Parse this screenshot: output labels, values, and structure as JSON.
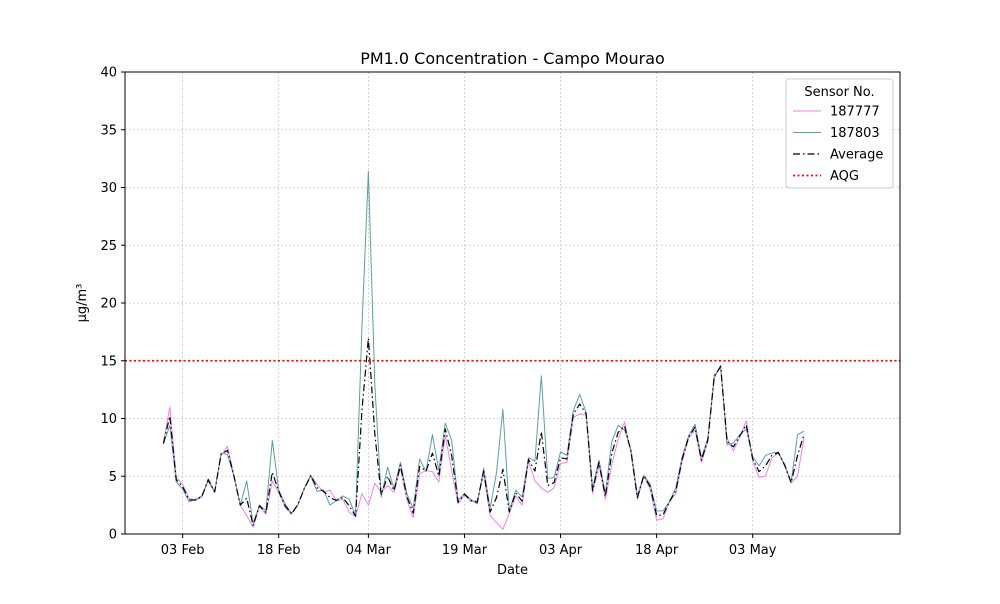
{
  "chart_data": {
    "type": "line",
    "title": "PM1.0 Concentration - Campo Mourao",
    "xlabel": "Date",
    "ylabel": "µg/m³",
    "ylim": [
      0,
      40
    ],
    "yticks": [
      "0",
      "5",
      "10",
      "15",
      "20",
      "25",
      "30",
      "35",
      "40"
    ],
    "xlim": [
      "2023-01-25",
      "2023-05-26"
    ],
    "xticks": [
      {
        "date": "2023-02-03",
        "label": "03 Feb"
      },
      {
        "date": "2023-02-18",
        "label": "18 Feb"
      },
      {
        "date": "2023-03-04",
        "label": "04 Mar"
      },
      {
        "date": "2023-03-19",
        "label": "19 Mar"
      },
      {
        "date": "2023-04-03",
        "label": "03 Apr"
      },
      {
        "date": "2023-04-18",
        "label": "18 Apr"
      },
      {
        "date": "2023-05-03",
        "label": "03 May"
      }
    ],
    "grid": true,
    "legend": {
      "title": "Sensor No.",
      "placement": "top-right"
    },
    "x_dates": [
      "2023-01-31",
      "2023-02-01",
      "2023-02-02",
      "2023-02-03",
      "2023-02-04",
      "2023-02-05",
      "2023-02-06",
      "2023-02-07",
      "2023-02-08",
      "2023-02-09",
      "2023-02-10",
      "2023-02-11",
      "2023-02-12",
      "2023-02-13",
      "2023-02-14",
      "2023-02-15",
      "2023-02-16",
      "2023-02-17",
      "2023-02-18",
      "2023-02-19",
      "2023-02-20",
      "2023-02-21",
      "2023-02-22",
      "2023-02-23",
      "2023-02-24",
      "2023-02-25",
      "2023-02-26",
      "2023-02-27",
      "2023-02-28",
      "2023-03-01",
      "2023-03-02",
      "2023-03-03",
      "2023-03-04",
      "2023-03-05",
      "2023-03-06",
      "2023-03-07",
      "2023-03-08",
      "2023-03-09",
      "2023-03-10",
      "2023-03-11",
      "2023-03-12",
      "2023-03-13",
      "2023-03-14",
      "2023-03-15",
      "2023-03-16",
      "2023-03-17",
      "2023-03-18",
      "2023-03-19",
      "2023-03-20",
      "2023-03-21",
      "2023-03-22",
      "2023-03-23",
      "2023-03-24",
      "2023-03-25",
      "2023-03-26",
      "2023-03-27",
      "2023-03-28",
      "2023-03-29",
      "2023-03-30",
      "2023-03-31",
      "2023-04-01",
      "2023-04-02",
      "2023-04-03",
      "2023-04-04",
      "2023-04-05",
      "2023-04-06",
      "2023-04-07",
      "2023-04-08",
      "2023-04-09",
      "2023-04-10",
      "2023-04-11",
      "2023-04-12",
      "2023-04-13",
      "2023-04-14",
      "2023-04-15",
      "2023-04-16",
      "2023-04-17",
      "2023-04-18",
      "2023-04-19",
      "2023-04-20",
      "2023-04-21",
      "2023-04-22",
      "2023-04-23",
      "2023-04-24",
      "2023-04-25",
      "2023-04-26",
      "2023-04-27",
      "2023-04-28",
      "2023-04-29",
      "2023-04-30",
      "2023-05-01",
      "2023-05-02",
      "2023-05-03",
      "2023-05-04",
      "2023-05-05",
      "2023-05-06",
      "2023-05-07",
      "2023-05-08",
      "2023-05-09",
      "2023-05-10",
      "2023-05-11"
    ],
    "series": [
      {
        "name": "187777",
        "color": "#ee82ee",
        "style": "solid",
        "values": [
          7.9,
          11.0,
          4.9,
          4.3,
          3.1,
          2.9,
          3.2,
          4.8,
          3.7,
          6.8,
          7.6,
          5.1,
          2.5,
          1.6,
          0.6,
          2.4,
          1.7,
          4.6,
          3.6,
          2.3,
          1.7,
          2.6,
          3.9,
          5.1,
          4.3,
          3.6,
          3.8,
          2.9,
          3.0,
          1.9,
          1.5,
          3.5,
          2.5,
          4.4,
          3.6,
          4.2,
          3.6,
          5.7,
          3.0,
          1.4,
          5.2,
          5.5,
          5.4,
          4.5,
          8.6,
          5.5,
          2.6,
          3.4,
          2.8,
          2.9,
          5.2,
          1.6,
          1.0,
          0.4,
          1.8,
          3.3,
          2.5,
          6.3,
          4.6,
          4.0,
          3.6,
          4.0,
          6.1,
          6.2,
          10.1,
          10.4,
          10.3,
          3.5,
          6.0,
          3.0,
          6.0,
          8.2,
          9.7,
          7.0,
          3.0,
          5.0,
          3.9,
          1.2,
          1.3,
          2.8,
          3.5,
          6.3,
          8.3,
          9.0,
          6.2,
          8.0,
          13.8,
          14.4,
          8.3,
          7.2,
          8.4,
          9.8,
          6.3,
          4.9,
          5.0,
          6.6,
          7.0,
          5.9,
          4.4,
          5.0,
          8.3
        ]
      },
      {
        "name": "187803",
        "color": "#5f9ea0",
        "style": "solid",
        "values": [
          7.8,
          9.4,
          4.5,
          3.9,
          2.8,
          3.0,
          3.3,
          4.6,
          3.6,
          7.0,
          6.9,
          5.0,
          2.5,
          4.6,
          0.9,
          2.5,
          2.0,
          8.1,
          3.8,
          2.6,
          1.8,
          2.5,
          4.0,
          5.0,
          3.7,
          3.8,
          2.5,
          2.9,
          3.3,
          3.0,
          1.6,
          18.0,
          31.4,
          13.0,
          3.2,
          5.8,
          3.9,
          6.2,
          3.5,
          2.2,
          6.5,
          5.4,
          8.6,
          5.5,
          9.6,
          8.1,
          2.9,
          3.5,
          3.0,
          2.6,
          5.7,
          2.2,
          5.3,
          10.8,
          2.0,
          3.8,
          3.2,
          6.6,
          6.3,
          13.7,
          4.8,
          4.9,
          7.1,
          6.8,
          10.7,
          12.1,
          10.5,
          4.0,
          6.4,
          3.5,
          8.0,
          9.4,
          9.0,
          7.3,
          3.3,
          5.1,
          4.3,
          2.0,
          2.0,
          2.8,
          4.0,
          6.7,
          8.5,
          9.5,
          6.6,
          8.3,
          13.5,
          14.6,
          7.7,
          7.9,
          8.6,
          9.1,
          6.7,
          5.9,
          6.8,
          7.0,
          7.1,
          6.0,
          4.5,
          8.6,
          8.9
        ]
      },
      {
        "name": "Average",
        "color": "#000000",
        "style": "dashdot",
        "values": [
          7.85,
          10.2,
          4.7,
          4.1,
          2.95,
          2.95,
          3.25,
          4.7,
          3.65,
          6.9,
          7.25,
          5.05,
          2.5,
          3.1,
          0.75,
          2.45,
          1.85,
          5.35,
          3.7,
          2.45,
          1.75,
          2.55,
          3.95,
          5.05,
          4.0,
          3.7,
          3.15,
          2.9,
          3.15,
          2.45,
          1.55,
          10.75,
          16.95,
          8.7,
          3.4,
          5.0,
          3.75,
          5.95,
          3.25,
          1.8,
          5.85,
          5.45,
          7.0,
          5.0,
          9.1,
          6.8,
          2.75,
          3.45,
          2.9,
          2.75,
          5.45,
          1.9,
          3.15,
          5.6,
          1.9,
          3.55,
          2.85,
          6.45,
          5.45,
          8.85,
          4.2,
          4.45,
          6.6,
          6.5,
          10.4,
          11.25,
          10.4,
          3.75,
          6.2,
          3.25,
          7.0,
          8.8,
          9.35,
          7.15,
          3.15,
          5.05,
          4.1,
          1.6,
          1.65,
          2.8,
          3.75,
          6.5,
          8.4,
          9.25,
          6.4,
          8.15,
          13.65,
          14.5,
          8.0,
          7.55,
          8.5,
          9.45,
          6.5,
          5.4,
          5.9,
          6.8,
          7.05,
          5.95,
          4.45,
          6.8,
          8.6
        ]
      },
      {
        "name": "AQG",
        "color": "#ff0000",
        "style": "dotted",
        "constant": 15
      }
    ]
  }
}
